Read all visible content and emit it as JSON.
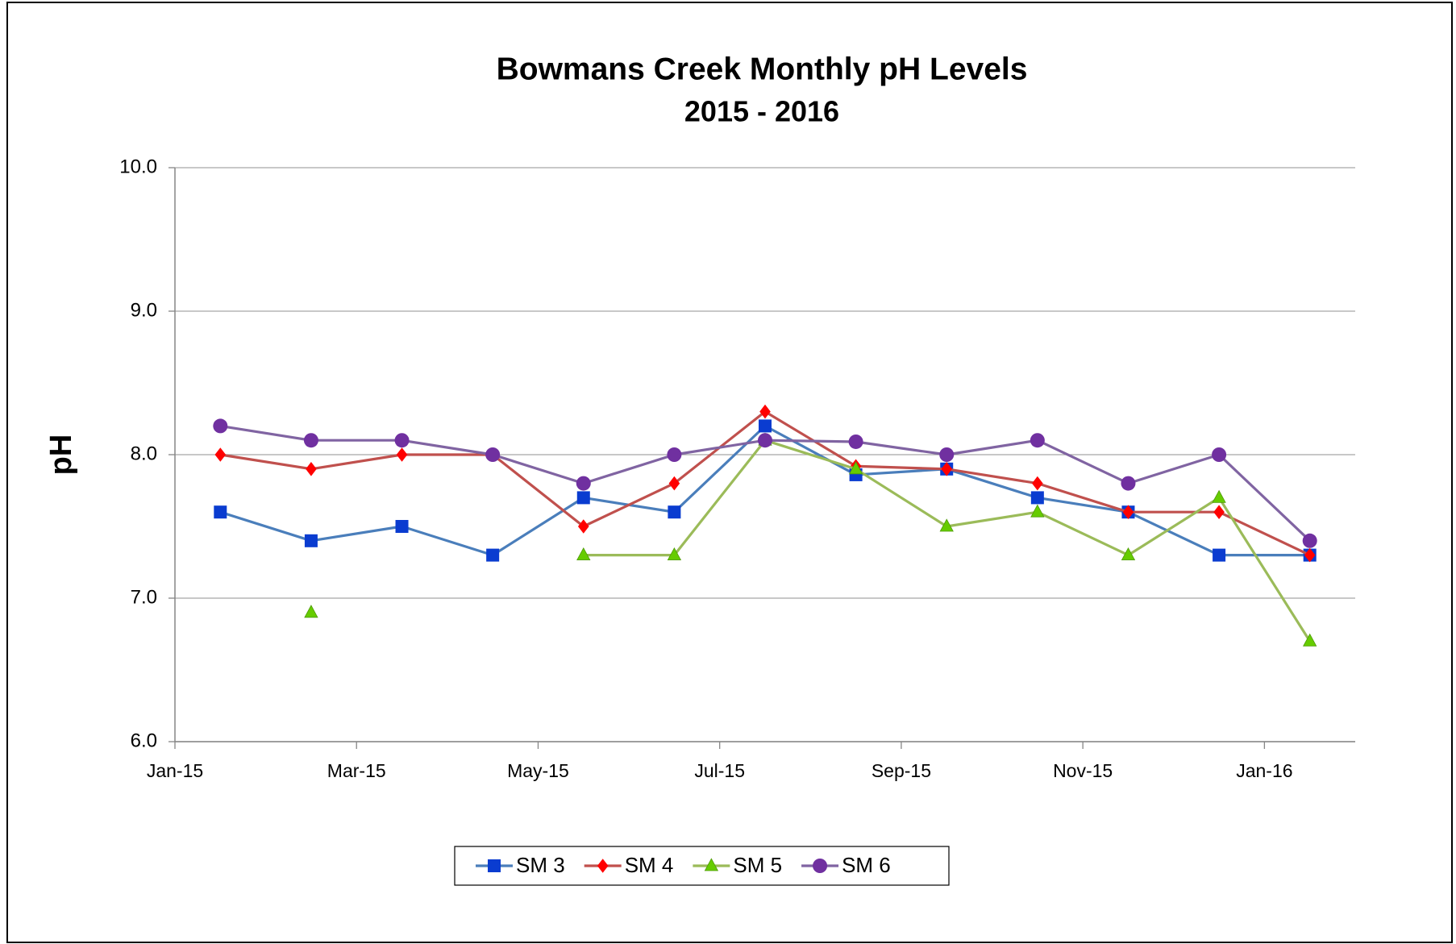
{
  "chart_data": {
    "type": "line",
    "title": "Bowmans Creek Monthly pH Levels",
    "subtitle": "2015 - 2016",
    "y_label": "pH",
    "x": [
      "Jan-15",
      "Feb-15",
      "Mar-15",
      "Apr-15",
      "May-15",
      "Jun-15",
      "Jul-15",
      "Aug-15",
      "Sep-15",
      "Oct-15",
      "Nov-15",
      "Dec-15",
      "Jan-16"
    ],
    "xlim": [
      "Jan-15",
      "Feb-16"
    ],
    "xticks": [
      "Jan-15",
      "Mar-15",
      "May-15",
      "Jul-15",
      "Sep-15",
      "Nov-15",
      "Jan-16"
    ],
    "ylim": [
      6,
      10
    ],
    "yticks": [
      {
        "value": 6,
        "label": "6.0"
      },
      {
        "value": 7,
        "label": "7.0"
      },
      {
        "value": 8,
        "label": "8.0"
      },
      {
        "value": 9,
        "label": "9.0"
      },
      {
        "value": 10,
        "label": "10.0"
      }
    ],
    "grid": true,
    "legend": "bottom",
    "series": [
      {
        "name": "SM 3",
        "color": "#4a7ebb",
        "marker": "square",
        "marker_color": "#0a3cd0",
        "values": [
          7.6,
          7.4,
          7.5,
          7.3,
          7.7,
          7.6,
          8.2,
          7.86,
          7.9,
          7.7,
          7.6,
          7.3,
          7.3
        ]
      },
      {
        "name": "SM 4",
        "color": "#c0504d",
        "marker": "diamond",
        "marker_color": "#ff0000",
        "values": [
          8.0,
          7.9,
          8.0,
          8.0,
          7.5,
          7.8,
          8.3,
          7.92,
          7.9,
          7.8,
          7.6,
          7.6,
          7.3
        ]
      },
      {
        "name": "SM 5",
        "color": "#9bbb59",
        "marker": "triangle",
        "marker_color": "#66cc00",
        "values": [
          null,
          6.9,
          null,
          null,
          7.3,
          7.3,
          8.1,
          7.9,
          7.5,
          7.6,
          7.3,
          7.7,
          6.7
        ]
      },
      {
        "name": "SM 6",
        "color": "#8064a2",
        "marker": "circle",
        "marker_color": "#7030a0",
        "values": [
          8.2,
          8.1,
          8.1,
          8.0,
          7.8,
          8.0,
          8.1,
          8.09,
          8.0,
          8.1,
          7.8,
          8.0,
          7.4
        ]
      }
    ]
  }
}
